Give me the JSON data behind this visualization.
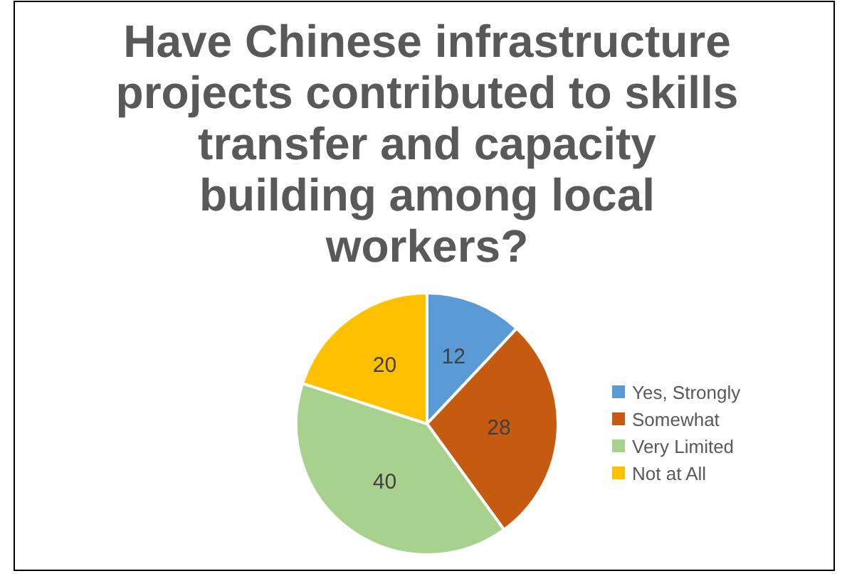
{
  "chart_data": {
    "type": "pie",
    "title": "Have Chinese infrastructure projects contributed to skills transfer and capacity building among local workers?",
    "categories": [
      "Yes, Strongly",
      "Somewhat",
      "Very Limited",
      "Not at All"
    ],
    "values": [
      12,
      28,
      40,
      20
    ],
    "colors": [
      "#5b9bd5",
      "#c55a11",
      "#a9d18e",
      "#ffc000"
    ],
    "data_labels": true,
    "legend": "right"
  }
}
